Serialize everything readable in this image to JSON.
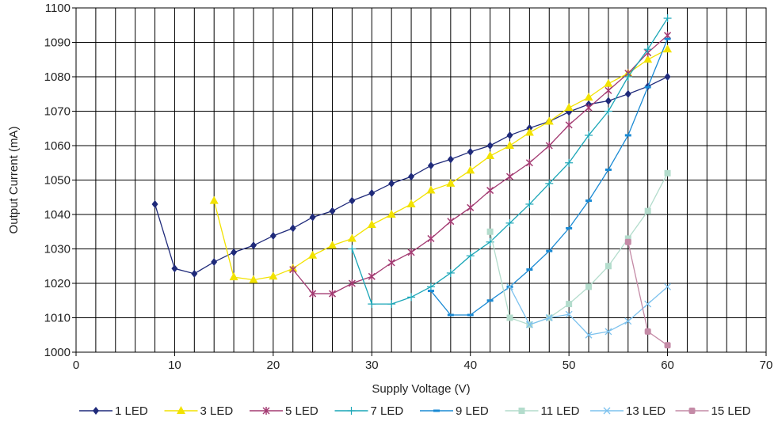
{
  "chart_data": {
    "type": "line",
    "title": "",
    "xlabel": "Supply Voltage (V)",
    "ylabel": "Output Current (mA)",
    "xlim": [
      0,
      70
    ],
    "ylim": [
      1000,
      1100
    ],
    "x_ticks": [
      0,
      10,
      20,
      30,
      40,
      50,
      60,
      70
    ],
    "y_ticks": [
      1000,
      1010,
      1020,
      1030,
      1040,
      1050,
      1060,
      1070,
      1080,
      1090,
      1100
    ],
    "grid": "vertical every 2 V, horizontal every 10 mA",
    "legend_position": "bottom",
    "series": [
      {
        "name": "1 LED",
        "color": "#1f2a7a",
        "marker": "diamond",
        "x": [
          8,
          10,
          12,
          14,
          16,
          18,
          20,
          22,
          24,
          26,
          28,
          30,
          32,
          34,
          36,
          38,
          40,
          42,
          44,
          46,
          48,
          50,
          52,
          54,
          56,
          58,
          60
        ],
        "y": [
          1043,
          1024.3,
          1022.8,
          1026.2,
          1029,
          1031,
          1033.8,
          1036,
          1039.2,
          1041,
          1044,
          1046.2,
          1049,
          1051,
          1054.2,
          1056,
          1058.2,
          1060,
          1063,
          1065.1,
          1067,
          1069.8,
          1072,
          1073,
          1075,
          1077.2,
          1080
        ]
      },
      {
        "name": "3 LED",
        "color": "#f2e200",
        "marker": "triangle",
        "x": [
          14,
          16,
          18,
          20,
          22,
          24,
          26,
          28,
          30,
          32,
          34,
          36,
          38,
          40,
          42,
          44,
          46,
          48,
          50,
          52,
          54,
          56,
          58,
          60
        ],
        "y": [
          1044,
          1021.8,
          1021,
          1022,
          1024.3,
          1028.1,
          1031,
          1033,
          1037,
          1040,
          1043,
          1047,
          1049,
          1052.8,
          1057,
          1060,
          1063.8,
          1067,
          1071,
          1074,
          1078,
          1081,
          1085,
          1088
        ]
      },
      {
        "name": "5 LED",
        "color": "#a33b72",
        "marker": "star",
        "x": [
          22,
          24,
          26,
          28,
          30,
          32,
          34,
          36,
          38,
          40,
          42,
          44,
          46,
          48,
          50,
          52,
          54,
          56,
          58,
          60
        ],
        "y": [
          1024,
          1017,
          1017,
          1020,
          1022,
          1026,
          1029,
          1033,
          1038,
          1042,
          1047,
          1051,
          1055,
          1060,
          1066,
          1071,
          1076,
          1081,
          1087,
          1092
        ]
      },
      {
        "name": "7 LED",
        "color": "#1aa6b7",
        "marker": "plus",
        "x": [
          28,
          30,
          32,
          34,
          36,
          38,
          40,
          42,
          44,
          46,
          48,
          50,
          52,
          54,
          56,
          58,
          60
        ],
        "y": [
          1030,
          1014,
          1014,
          1016,
          1019,
          1023,
          1028,
          1032,
          1037.5,
          1043,
          1049,
          1055,
          1063,
          1070,
          1080,
          1088,
          1097
        ]
      },
      {
        "name": "9 LED",
        "color": "#1a8ad4",
        "marker": "dash",
        "x": [
          36,
          38,
          40,
          42,
          44,
          46,
          48,
          50,
          52,
          54,
          56,
          58,
          60
        ],
        "y": [
          1017.8,
          1010.8,
          1010.8,
          1015,
          1019,
          1024,
          1029.4,
          1036,
          1044,
          1053,
          1063,
          1077,
          1091
        ]
      },
      {
        "name": "11 LED",
        "color": "#b3dccc",
        "marker": "square",
        "x": [
          42,
          44,
          46,
          48,
          50,
          52,
          54,
          56,
          58,
          60
        ],
        "y": [
          1035,
          1010,
          1008,
          1010,
          1014,
          1019,
          1025,
          1033,
          1041,
          1052
        ]
      },
      {
        "name": "13 LED",
        "color": "#7dc2ee",
        "marker": "x",
        "x": [
          44,
          46,
          48,
          50,
          52,
          54,
          56,
          58,
          60
        ],
        "y": [
          1019,
          1008,
          1010,
          1011,
          1005,
          1006,
          1009,
          1014,
          1019
        ]
      },
      {
        "name": "15 LED",
        "color": "#c48aa6",
        "marker": "circle",
        "x": [
          56,
          58,
          60
        ],
        "y": [
          1032,
          1006,
          1002
        ]
      }
    ]
  }
}
